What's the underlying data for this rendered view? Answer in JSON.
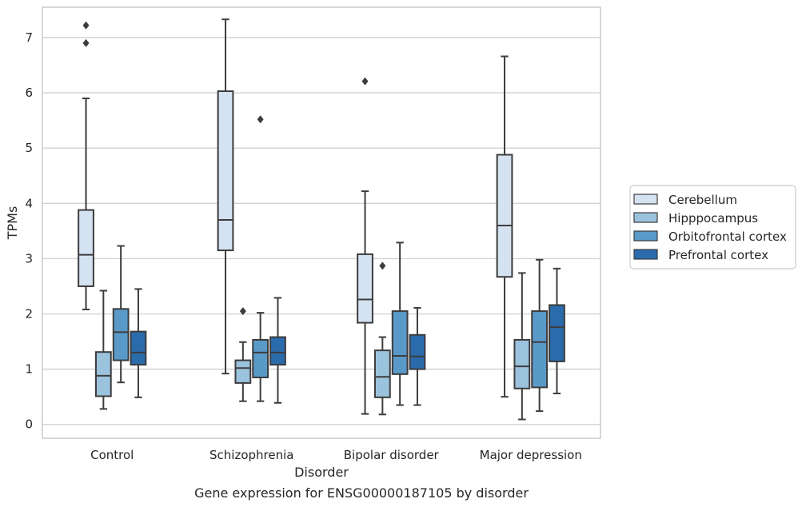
{
  "chart_data": {
    "type": "box",
    "xlabel": "Disorder",
    "ylabel": "TPMs",
    "caption": "Gene expression for ENSG00000187105 by disorder",
    "ylim": [
      -0.25,
      7.55
    ],
    "yticks": [
      0,
      1,
      2,
      3,
      4,
      5,
      6,
      7
    ],
    "grid": "horizontal",
    "legend_position": "right",
    "categories": [
      "Control",
      "Schizophrenia",
      "Bipolar disorder",
      "Major depression"
    ],
    "series": [
      {
        "name": "Cerebellum",
        "color": "#d4e2f1",
        "boxes": [
          {
            "whisker_low": 2.08,
            "q1": 2.5,
            "median": 3.07,
            "q3": 3.88,
            "whisker_high": 5.9,
            "outliers": [
              6.9,
              7.22
            ]
          },
          {
            "whisker_low": 0.92,
            "q1": 3.15,
            "median": 3.7,
            "q3": 6.03,
            "whisker_high": 7.33,
            "outliers": []
          },
          {
            "whisker_low": 0.19,
            "q1": 1.84,
            "median": 2.26,
            "q3": 3.08,
            "whisker_high": 4.22,
            "outliers": [
              6.21
            ]
          },
          {
            "whisker_low": 0.5,
            "q1": 2.67,
            "median": 3.6,
            "q3": 4.88,
            "whisker_high": 6.66,
            "outliers": []
          }
        ]
      },
      {
        "name": "Hipppocampus",
        "color": "#9cc3dd",
        "boxes": [
          {
            "whisker_low": 0.28,
            "q1": 0.51,
            "median": 0.88,
            "q3": 1.31,
            "whisker_high": 2.42,
            "outliers": []
          },
          {
            "whisker_low": 0.42,
            "q1": 0.75,
            "median": 1.02,
            "q3": 1.16,
            "whisker_high": 1.49,
            "outliers": [
              2.05
            ]
          },
          {
            "whisker_low": 0.18,
            "q1": 0.49,
            "median": 0.86,
            "q3": 1.34,
            "whisker_high": 1.58,
            "outliers": [
              2.87
            ]
          },
          {
            "whisker_low": 0.09,
            "q1": 0.65,
            "median": 1.05,
            "q3": 1.53,
            "whisker_high": 2.74,
            "outliers": []
          }
        ]
      },
      {
        "name": "Orbitofrontal cortex",
        "color": "#5a9ac9",
        "boxes": [
          {
            "whisker_low": 0.76,
            "q1": 1.16,
            "median": 1.67,
            "q3": 2.09,
            "whisker_high": 3.23,
            "outliers": []
          },
          {
            "whisker_low": 0.42,
            "q1": 0.85,
            "median": 1.3,
            "q3": 1.53,
            "whisker_high": 2.02,
            "outliers": [
              5.52
            ]
          },
          {
            "whisker_low": 0.35,
            "q1": 0.91,
            "median": 1.24,
            "q3": 2.05,
            "whisker_high": 3.29,
            "outliers": []
          },
          {
            "whisker_low": 0.24,
            "q1": 0.67,
            "median": 1.49,
            "q3": 2.05,
            "whisker_high": 2.98,
            "outliers": []
          }
        ]
      },
      {
        "name": "Prefrontal cortex",
        "color": "#2a6bac",
        "boxes": [
          {
            "whisker_low": 0.49,
            "q1": 1.08,
            "median": 1.3,
            "q3": 1.68,
            "whisker_high": 2.45,
            "outliers": []
          },
          {
            "whisker_low": 0.39,
            "q1": 1.08,
            "median": 1.3,
            "q3": 1.58,
            "whisker_high": 2.29,
            "outliers": []
          },
          {
            "whisker_low": 0.35,
            "q1": 1.0,
            "median": 1.23,
            "q3": 1.62,
            "whisker_high": 2.11,
            "outliers": []
          },
          {
            "whisker_low": 0.56,
            "q1": 1.14,
            "median": 1.76,
            "q3": 2.16,
            "whisker_high": 2.82,
            "outliers": []
          }
        ]
      }
    ]
  }
}
